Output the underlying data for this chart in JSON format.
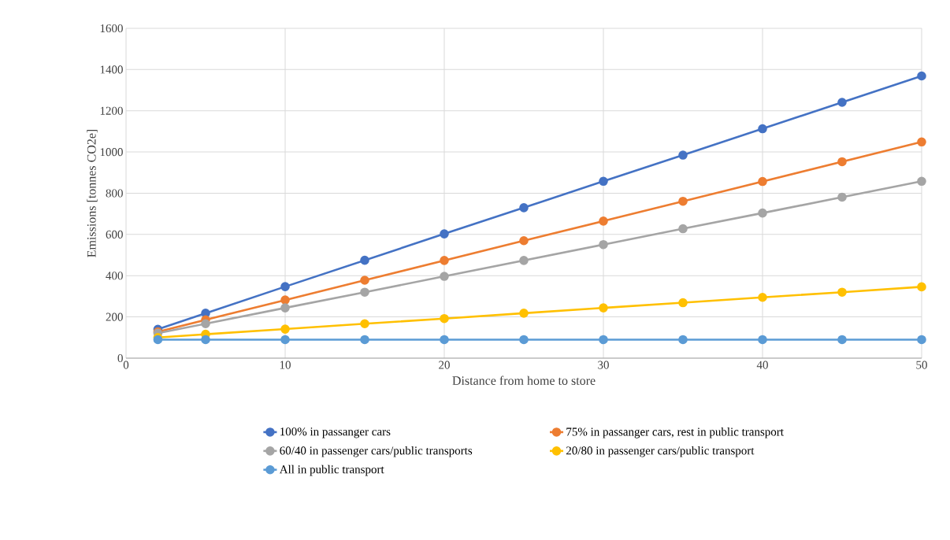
{
  "chart_data": {
    "type": "line",
    "xlabel": "Distance from home to store",
    "ylabel": "Emissions [tonnes CO2e]",
    "x": [
      2,
      5,
      10,
      15,
      20,
      25,
      30,
      35,
      40,
      45,
      50
    ],
    "series": [
      {
        "name": "100% in passanger cars",
        "color": "#4472c4",
        "values": [
          140,
          218,
          347,
          475,
          603,
          730,
          858,
          985,
          1113,
          1241,
          1369
        ]
      },
      {
        "name": "75% in passanger cars, rest in public transport",
        "color": "#ed7d31",
        "values": [
          128,
          186,
          282,
          378,
          474,
          570,
          665,
          761,
          857,
          953,
          1049
        ]
      },
      {
        "name": "60/40 in passenger cars/public transports",
        "color": "#a5a5a5",
        "values": [
          121,
          167,
          244,
          320,
          397,
          474,
          551,
          628,
          704,
          781,
          858
        ]
      },
      {
        "name": "20/80 in passenger cars/public transport",
        "color": "#ffc000",
        "values": [
          100,
          116,
          141,
          167,
          192,
          218,
          244,
          269,
          295,
          320,
          346
        ]
      },
      {
        "name": "All in public transport",
        "color": "#5b9bd5",
        "values": [
          90,
          90,
          90,
          90,
          90,
          90,
          90,
          90,
          90,
          90,
          90
        ]
      }
    ],
    "xlim": [
      0,
      50
    ],
    "xticks": [
      0,
      10,
      20,
      30,
      40,
      50
    ],
    "ylim": [
      0,
      1600
    ],
    "yticks": [
      0,
      200,
      400,
      600,
      800,
      1000,
      1200,
      1400,
      1600
    ],
    "grid": true,
    "legend": "bottom",
    "marker": "circle",
    "line_style": "solid"
  }
}
